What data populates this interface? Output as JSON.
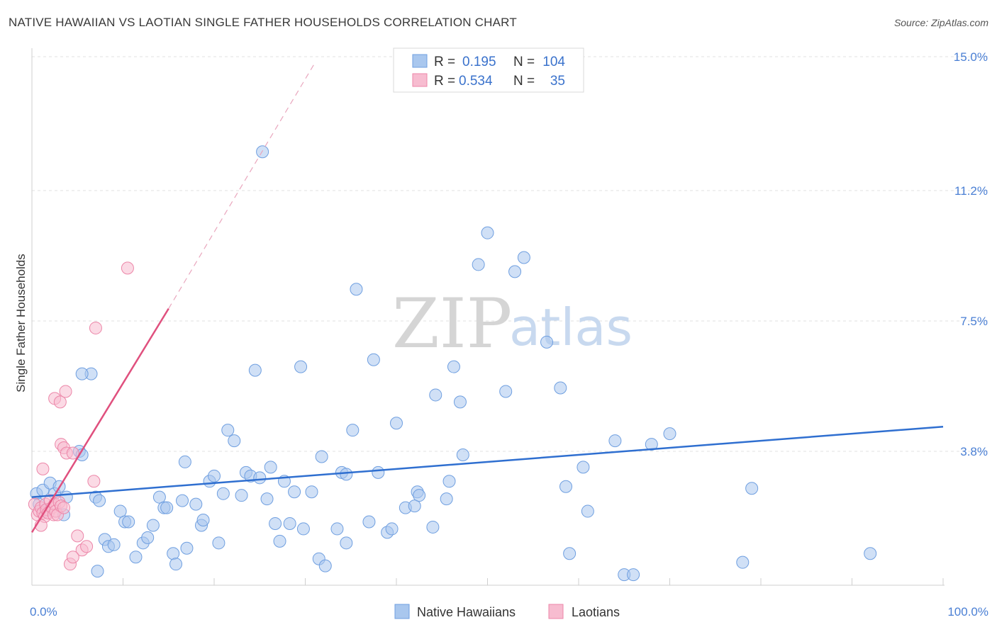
{
  "title": "NATIVE HAWAIIAN VS LAOTIAN SINGLE FATHER HOUSEHOLDS CORRELATION CHART",
  "source": "Source: ZipAtlas.com",
  "watermark": {
    "part1": "ZIP",
    "part2": "atlas"
  },
  "legend_top": {
    "rows": [
      {
        "r_label": "R =",
        "r_value": "0.195",
        "n_label": "N =",
        "n_value": "104",
        "color": "#a9c7ee",
        "stroke": "#6f9fe0"
      },
      {
        "r_label": "R =",
        "r_value": "0.534",
        "n_label": "N =",
        "n_value": "35",
        "color": "#f7bcd0",
        "stroke": "#ec86a8"
      }
    ]
  },
  "legend_bottom": [
    {
      "label": "Native Hawaiians",
      "color": "#a9c7ee",
      "stroke": "#6f9fe0"
    },
    {
      "label": "Laotians",
      "color": "#f7bcd0",
      "stroke": "#ec86a8"
    }
  ],
  "chart_data": {
    "type": "scatter",
    "title": "NATIVE HAWAIIAN VS LAOTIAN SINGLE FATHER HOUSEHOLDS CORRELATION CHART",
    "xlabel": "",
    "ylabel": "Single Father Households",
    "xlim": [
      0,
      100
    ],
    "ylim": [
      0,
      15
    ],
    "x_tick_labels": [
      "0.0%",
      "100.0%"
    ],
    "y_ticks": [
      3.8,
      7.5,
      11.2,
      15.0
    ],
    "y_tick_labels": [
      "3.8%",
      "7.5%",
      "11.2%",
      "15.0%"
    ],
    "grid": true,
    "legend_position": "top-center",
    "series": [
      {
        "name": "Native Hawaiians",
        "color": "#a9c7ee",
        "edge": "#6f9fe0",
        "trend_color": "#2f6fd0",
        "trend": {
          "x0": 0,
          "y0": 2.5,
          "x1": 100,
          "y1": 4.5
        },
        "points": [
          [
            0.5,
            2.6
          ],
          [
            0.8,
            2.3
          ],
          [
            1.2,
            2.7
          ],
          [
            1.5,
            2.1
          ],
          [
            2,
            2.9
          ],
          [
            2.5,
            2.6
          ],
          [
            3,
            2.8
          ],
          [
            3.8,
            2.5
          ],
          [
            3.5,
            2.0
          ],
          [
            6.5,
            6.0
          ],
          [
            5.5,
            6.0
          ],
          [
            5.2,
            3.8
          ],
          [
            5.5,
            3.7
          ],
          [
            7,
            2.5
          ],
          [
            7.2,
            0.4
          ],
          [
            7.4,
            2.4
          ],
          [
            8,
            1.3
          ],
          [
            8.4,
            1.1
          ],
          [
            9,
            1.15
          ],
          [
            9.7,
            2.1
          ],
          [
            10.2,
            1.8
          ],
          [
            10.6,
            1.8
          ],
          [
            11.4,
            0.8
          ],
          [
            12.2,
            1.2
          ],
          [
            12.7,
            1.35
          ],
          [
            13.3,
            1.7
          ],
          [
            14,
            2.5
          ],
          [
            14.5,
            2.2
          ],
          [
            14.8,
            2.2
          ],
          [
            15.5,
            0.9
          ],
          [
            15.8,
            0.6
          ],
          [
            16.5,
            2.4
          ],
          [
            16.8,
            3.5
          ],
          [
            17,
            1.05
          ],
          [
            18,
            2.3
          ],
          [
            18.6,
            1.7
          ],
          [
            18.8,
            1.85
          ],
          [
            19.5,
            2.95
          ],
          [
            20,
            3.1
          ],
          [
            20.5,
            1.2
          ],
          [
            21,
            2.6
          ],
          [
            21.5,
            4.4
          ],
          [
            22.2,
            4.1
          ],
          [
            23,
            2.55
          ],
          [
            23.5,
            3.2
          ],
          [
            24,
            3.1
          ],
          [
            24.5,
            6.1
          ],
          [
            25,
            3.05
          ],
          [
            25.3,
            12.3
          ],
          [
            25.8,
            2.45
          ],
          [
            26.2,
            3.35
          ],
          [
            26.7,
            1.75
          ],
          [
            27.2,
            1.25
          ],
          [
            27.7,
            2.95
          ],
          [
            28.3,
            1.75
          ],
          [
            28.8,
            2.65
          ],
          [
            29.5,
            6.2
          ],
          [
            29.8,
            1.6
          ],
          [
            30.7,
            2.65
          ],
          [
            31.5,
            0.75
          ],
          [
            31.8,
            3.65
          ],
          [
            32.2,
            0.55
          ],
          [
            34,
            3.2
          ],
          [
            34.5,
            3.15
          ],
          [
            33.5,
            1.6
          ],
          [
            34.5,
            1.2
          ],
          [
            35.2,
            4.4
          ],
          [
            35.6,
            8.4
          ],
          [
            37,
            1.8
          ],
          [
            37.5,
            6.4
          ],
          [
            38,
            3.2
          ],
          [
            39,
            1.5
          ],
          [
            39.5,
            1.6
          ],
          [
            40,
            4.6
          ],
          [
            41,
            2.2
          ],
          [
            42,
            2.25
          ],
          [
            42.3,
            2.65
          ],
          [
            42.5,
            2.55
          ],
          [
            44,
            1.65
          ],
          [
            44.3,
            5.4
          ],
          [
            45.5,
            2.45
          ],
          [
            45.8,
            2.95
          ],
          [
            46.3,
            6.2
          ],
          [
            47.3,
            3.7
          ],
          [
            47,
            5.2
          ],
          [
            49,
            9.1
          ],
          [
            50,
            10.0
          ],
          [
            52,
            5.5
          ],
          [
            53,
            8.9
          ],
          [
            54,
            9.3
          ],
          [
            56.5,
            6.9
          ],
          [
            58,
            5.6
          ],
          [
            58.6,
            2.8
          ],
          [
            59,
            0.9
          ],
          [
            60.5,
            3.35
          ],
          [
            61,
            2.1
          ],
          [
            64,
            4.1
          ],
          [
            65,
            0.3
          ],
          [
            66,
            0.3
          ],
          [
            68,
            4.0
          ],
          [
            70,
            4.3
          ],
          [
            78,
            0.65
          ],
          [
            79,
            2.75
          ],
          [
            92,
            0.9
          ]
        ]
      },
      {
        "name": "Laotians",
        "color": "#f7bcd0",
        "edge": "#ec86a8",
        "trend_color": "#e0507e",
        "trend": {
          "x0": 0,
          "y0": 1.5,
          "x1": 15,
          "y1": 7.85
        },
        "trend_dashed": {
          "x0": 15,
          "y0": 7.85,
          "x1": 31,
          "y1": 14.8
        },
        "points": [
          [
            0.3,
            2.3
          ],
          [
            0.6,
            2.0
          ],
          [
            0.8,
            2.1
          ],
          [
            1.0,
            2.2
          ],
          [
            1.2,
            2.05
          ],
          [
            1.4,
            1.95
          ],
          [
            1.5,
            2.3
          ],
          [
            1.6,
            2.15
          ],
          [
            1.8,
            2.05
          ],
          [
            2.0,
            2.4
          ],
          [
            2.2,
            2.2
          ],
          [
            2.4,
            2.0
          ],
          [
            2.5,
            2.3
          ],
          [
            2.6,
            2.1
          ],
          [
            2.8,
            2.0
          ],
          [
            3.0,
            2.35
          ],
          [
            3.2,
            2.25
          ],
          [
            3.5,
            2.2
          ],
          [
            1.0,
            1.7
          ],
          [
            1.2,
            3.3
          ],
          [
            2.5,
            5.3
          ],
          [
            3.1,
            5.2
          ],
          [
            3.7,
            5.5
          ],
          [
            3.2,
            4.0
          ],
          [
            3.5,
            3.9
          ],
          [
            3.8,
            3.75
          ],
          [
            4.5,
            3.75
          ],
          [
            5.0,
            1.4
          ],
          [
            5.5,
            1.0
          ],
          [
            6.0,
            1.1
          ],
          [
            4.2,
            0.6
          ],
          [
            4.5,
            0.8
          ],
          [
            6.8,
            2.95
          ],
          [
            7.0,
            7.3
          ],
          [
            10.5,
            9.0
          ]
        ]
      }
    ]
  }
}
